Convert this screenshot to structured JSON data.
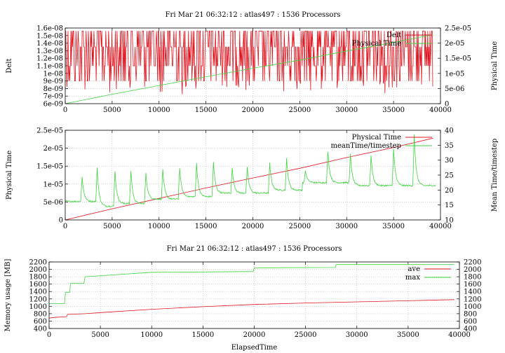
{
  "chart_data": [
    {
      "type": "line",
      "title": "Fri Mar 21 06:32:12 : atlas497 : 1536 Processors",
      "xlim": [
        0,
        40000
      ],
      "x_ticks": [
        "0",
        "5000",
        "10000",
        "15000",
        "20000",
        "25000",
        "30000",
        "35000",
        "40000"
      ],
      "ylabel": "Delt",
      "ylim": [
        6e-09,
        1.6e-08
      ],
      "y_ticks": [
        "6e-09",
        "7e-09",
        "8e-09",
        "9e-09",
        "1e-08",
        "1.1e-08",
        "1.2e-08",
        "1.3e-08",
        "1.4e-08",
        "1.5e-08",
        "1.6e-08"
      ],
      "y2label": "Physical Time",
      "y2lim": [
        0,
        2.5e-05
      ],
      "y2_ticks": [
        "0",
        "5e-06",
        "1e-05",
        "1.5e-05",
        "2e-05",
        "2.5e-05"
      ],
      "grid": true,
      "legend_position": "top-right",
      "colors": {
        "Delt": "#e0141e",
        "Physical Time": "#3fd43f"
      },
      "series": [
        {
          "name": "Delt",
          "axis": "left",
          "description_values": {
            "min": 7.2e-09,
            "max": 1.56e-08,
            "typical_levels": [
              1.56e-08,
              1.35e-08,
              1.1e-08,
              9e-09
            ]
          }
        },
        {
          "name": "Physical Time",
          "axis": "right",
          "x": [
            0,
            5000,
            10000,
            15000,
            20000,
            25000,
            30000,
            35000,
            39200
          ],
          "values": [
            0,
            3.1e-06,
            6e-06,
            8.9e-06,
            1.17e-05,
            1.44e-05,
            1.74e-05,
            2.02e-05,
            2.28e-05
          ]
        }
      ]
    },
    {
      "type": "line",
      "title": "",
      "xlim": [
        0,
        40000
      ],
      "x_ticks": [
        "0",
        "5000",
        "10000",
        "15000",
        "20000",
        "25000",
        "30000",
        "35000",
        "40000"
      ],
      "ylabel": "Physical Time",
      "ylim": [
        0,
        2.5e-05
      ],
      "y_ticks": [
        "0",
        "5e-06",
        "1e-05",
        "1.5e-05",
        "2e-05",
        "2.5e-05"
      ],
      "y2label": "Mean Time/timestep",
      "y2lim": [
        10,
        40
      ],
      "y2_ticks": [
        "10",
        "15",
        "20",
        "25",
        "30",
        "35",
        "40"
      ],
      "grid": true,
      "legend_position": "top-right",
      "colors": {
        "Physical Time": "#e0141e",
        "meanTime/timestep": "#3fd43f"
      },
      "series": [
        {
          "name": "Physical Time",
          "axis": "left",
          "x": [
            0,
            5000,
            10000,
            15000,
            20000,
            25000,
            30000,
            35000,
            39200
          ],
          "values": [
            0,
            3.1e-06,
            6e-06,
            8.9e-06,
            1.17e-05,
            1.44e-05,
            1.74e-05,
            2.02e-05,
            2.28e-05
          ]
        },
        {
          "name": "meanTime/timestep",
          "axis": "right",
          "baseline_segments": [
            [
              0,
              16.2
            ],
            [
              3200,
              16.2
            ],
            [
              3300,
              14.6
            ],
            [
              5200,
              14.6
            ],
            [
              5300,
              15.5
            ],
            [
              8400,
              15.5
            ],
            [
              8500,
              17.0
            ],
            [
              12000,
              17.0
            ],
            [
              12100,
              17.8
            ],
            [
              15800,
              17.8
            ],
            [
              15900,
              19.0
            ],
            [
              21800,
              19.0
            ],
            [
              21900,
              20.0
            ],
            [
              25200,
              20.0
            ],
            [
              25300,
              22.5
            ],
            [
              30200,
              22.5
            ],
            [
              30300,
              21.5
            ],
            [
              39500,
              21.5
            ]
          ],
          "spikes": [
            [
              1800,
              24.5
            ],
            [
              3400,
              27.5
            ],
            [
              5300,
              26.5
            ],
            [
              7000,
              26.5
            ],
            [
              8600,
              25.5
            ],
            [
              10400,
              27.0
            ],
            [
              12200,
              27.5
            ],
            [
              14000,
              29.0
            ],
            [
              15800,
              29.5
            ],
            [
              17800,
              27.5
            ],
            [
              19400,
              27.5
            ],
            [
              21800,
              29.0
            ],
            [
              23600,
              30.5
            ],
            [
              25600,
              26.5
            ],
            [
              28000,
              33.0
            ],
            [
              30400,
              32.0
            ],
            [
              32600,
              31.5
            ],
            [
              35000,
              34.0
            ],
            [
              37200,
              38.5
            ]
          ]
        }
      ]
    },
    {
      "type": "line",
      "title": "Fri Mar 21 06:32:12 : atlas497 : 1536 Processors",
      "xlabel": "ElapsedTime",
      "xlim": [
        0,
        40000
      ],
      "x_ticks": [
        "0",
        "5000",
        "10000",
        "15000",
        "20000",
        "25000",
        "30000",
        "35000",
        "40000"
      ],
      "ylabel": "Memory usage [MB]",
      "ylim": [
        400,
        2200
      ],
      "y_ticks": [
        "400",
        "600",
        "800",
        "1000",
        "1200",
        "1400",
        "1600",
        "1800",
        "2000",
        "2200"
      ],
      "y2_ticks": [
        "400",
        "600",
        "800",
        "1000",
        "1200",
        "1400",
        "1600",
        "1800",
        "2000",
        "2200"
      ],
      "grid": true,
      "legend_position": "top-right",
      "colors": {
        "ave": "#e0141e",
        "max": "#3fd43f"
      },
      "series": [
        {
          "name": "ave",
          "x": [
            0,
            500,
            1700,
            1800,
            3500,
            5000,
            10000,
            15000,
            20000,
            25000,
            30000,
            35000,
            39500
          ],
          "values": [
            680,
            700,
            720,
            780,
            800,
            830,
            920,
            990,
            1050,
            1090,
            1120,
            1150,
            1180
          ]
        },
        {
          "name": "max",
          "x": [
            0,
            1500,
            1600,
            2000,
            2100,
            3400,
            3500,
            10000,
            15000,
            19900,
            20000,
            27900,
            28000,
            39500
          ],
          "values": [
            1070,
            1070,
            1380,
            1380,
            1620,
            1620,
            1800,
            1920,
            1930,
            1940,
            2040,
            2050,
            2130,
            2130
          ]
        }
      ]
    }
  ]
}
